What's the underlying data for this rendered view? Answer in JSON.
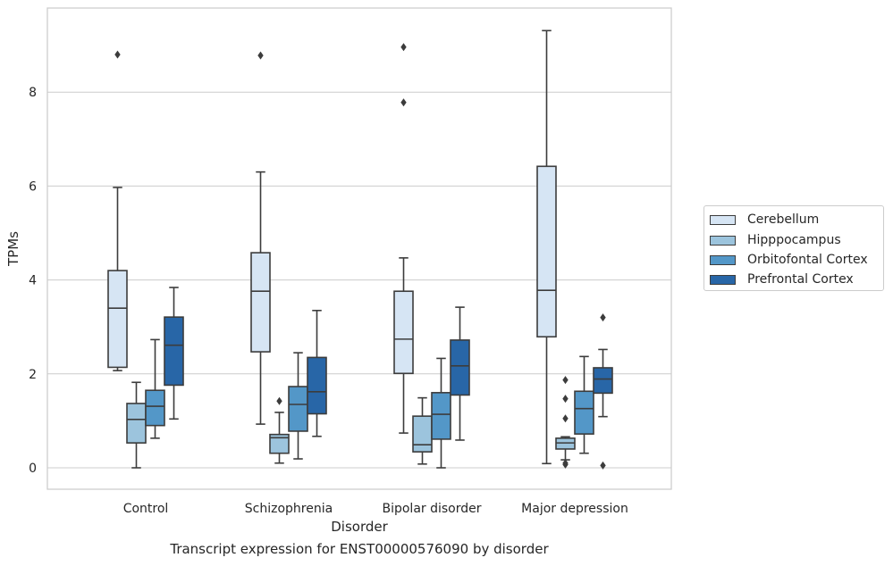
{
  "caption": "Transcript expression for ENST00000576090 by disorder",
  "chart_data": {
    "type": "box",
    "xlabel": "Disorder",
    "ylabel": "TPMs",
    "ylim": [
      -0.45,
      9.8
    ],
    "yticks": [
      0,
      2,
      4,
      6,
      8
    ],
    "grid": "horizontal",
    "legend_position": "right",
    "categories": [
      "Control",
      "Schizophrenia",
      "Bipolar disorder",
      "Major depression"
    ],
    "series": [
      {
        "name": "Cerebellum",
        "color": "#d6e5f4",
        "boxes": [
          {
            "min": 2.07,
            "q1": 2.14,
            "median": 3.4,
            "q3": 4.2,
            "max": 5.97,
            "outliers": [
              8.8
            ]
          },
          {
            "min": 0.93,
            "q1": 2.47,
            "median": 3.76,
            "q3": 4.58,
            "max": 6.3,
            "outliers": [
              8.78
            ]
          },
          {
            "min": 0.74,
            "q1": 2.01,
            "median": 2.74,
            "q3": 3.76,
            "max": 4.47,
            "outliers": [
              7.78,
              8.96
            ]
          },
          {
            "min": 0.09,
            "q1": 2.79,
            "median": 3.78,
            "q3": 6.42,
            "max": 9.31,
            "outliers": []
          }
        ]
      },
      {
        "name": "Hipppocampus",
        "color": "#9cc4dd",
        "boxes": [
          {
            "min": 0.0,
            "q1": 0.53,
            "median": 1.03,
            "q3": 1.37,
            "max": 1.82,
            "outliers": []
          },
          {
            "min": 0.1,
            "q1": 0.31,
            "median": 0.64,
            "q3": 0.71,
            "max": 1.18,
            "outliers": [
              1.42
            ]
          },
          {
            "min": 0.08,
            "q1": 0.34,
            "median": 0.49,
            "q3": 1.1,
            "max": 1.49,
            "outliers": []
          },
          {
            "min": 0.17,
            "q1": 0.4,
            "median": 0.53,
            "q3": 0.63,
            "max": 0.66,
            "outliers": [
              0.07,
              0.1,
              1.05,
              1.47,
              1.87
            ]
          }
        ]
      },
      {
        "name": "Orbitofontal Cortex",
        "color": "#5397c8",
        "boxes": [
          {
            "min": 0.63,
            "q1": 0.9,
            "median": 1.31,
            "q3": 1.65,
            "max": 2.73,
            "outliers": []
          },
          {
            "min": 0.19,
            "q1": 0.78,
            "median": 1.35,
            "q3": 1.73,
            "max": 2.45,
            "outliers": []
          },
          {
            "min": 0.0,
            "q1": 0.61,
            "median": 1.14,
            "q3": 1.6,
            "max": 2.33,
            "outliers": []
          },
          {
            "min": 0.31,
            "q1": 0.72,
            "median": 1.26,
            "q3": 1.63,
            "max": 2.37,
            "outliers": []
          }
        ]
      },
      {
        "name": "Prefrontal Cortex",
        "color": "#2866a7",
        "boxes": [
          {
            "min": 1.04,
            "q1": 1.76,
            "median": 2.61,
            "q3": 3.21,
            "max": 3.84,
            "outliers": []
          },
          {
            "min": 0.67,
            "q1": 1.15,
            "median": 1.62,
            "q3": 2.35,
            "max": 3.35,
            "outliers": []
          },
          {
            "min": 0.59,
            "q1": 1.55,
            "median": 2.17,
            "q3": 2.72,
            "max": 3.42,
            "outliers": []
          },
          {
            "min": 1.09,
            "q1": 1.59,
            "median": 1.89,
            "q3": 2.13,
            "max": 2.52,
            "outliers": [
              0.05,
              3.2
            ]
          }
        ]
      }
    ]
  }
}
